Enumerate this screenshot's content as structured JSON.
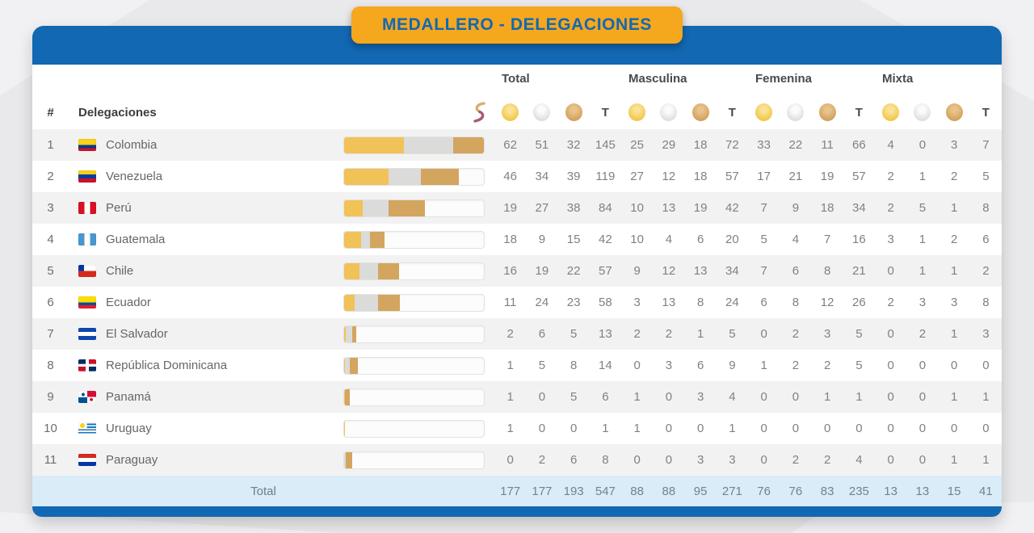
{
  "banner": {
    "title": "MEDALLERO - DELEGACIONES"
  },
  "colors": {
    "primary_blue": "#1268b3",
    "banner_orange": "#f5a71e",
    "gold": "#f1c257",
    "silver": "#dbdbd9",
    "bronze": "#d3a55e",
    "total_row_bg": "#d9ecf8"
  },
  "table": {
    "rank_header": "#",
    "delegation_header": "Delegaciones",
    "t_label": "T",
    "groups": [
      {
        "label": "Total"
      },
      {
        "label": "Masculina"
      },
      {
        "label": "Femenina"
      },
      {
        "label": "Mixta"
      }
    ],
    "medal_column_order": [
      "gold",
      "silver",
      "bronze",
      "T"
    ],
    "rows": [
      {
        "rank": "1",
        "country": "Colombia",
        "flag": "colombia",
        "values": [
          62,
          51,
          32,
          145,
          25,
          29,
          18,
          72,
          33,
          22,
          11,
          66,
          4,
          0,
          3,
          7
        ]
      },
      {
        "rank": "2",
        "country": "Venezuela",
        "flag": "venezuela",
        "values": [
          46,
          34,
          39,
          119,
          27,
          12,
          18,
          57,
          17,
          21,
          19,
          57,
          2,
          1,
          2,
          5
        ]
      },
      {
        "rank": "3",
        "country": "Perú",
        "flag": "peru",
        "values": [
          19,
          27,
          38,
          84,
          10,
          13,
          19,
          42,
          7,
          9,
          18,
          34,
          2,
          5,
          1,
          8
        ]
      },
      {
        "rank": "4",
        "country": "Guatemala",
        "flag": "guatemala",
        "values": [
          18,
          9,
          15,
          42,
          10,
          4,
          6,
          20,
          5,
          4,
          7,
          16,
          3,
          1,
          2,
          6
        ]
      },
      {
        "rank": "5",
        "country": "Chile",
        "flag": "chile",
        "values": [
          16,
          19,
          22,
          57,
          9,
          12,
          13,
          34,
          7,
          6,
          8,
          21,
          0,
          1,
          1,
          2
        ]
      },
      {
        "rank": "6",
        "country": "Ecuador",
        "flag": "ecuador",
        "values": [
          11,
          24,
          23,
          58,
          3,
          13,
          8,
          24,
          6,
          8,
          12,
          26,
          2,
          3,
          3,
          8
        ]
      },
      {
        "rank": "7",
        "country": "El Salvador",
        "flag": "el-salvador",
        "values": [
          2,
          6,
          5,
          13,
          2,
          2,
          1,
          5,
          0,
          2,
          3,
          5,
          0,
          2,
          1,
          3
        ]
      },
      {
        "rank": "8",
        "country": "República Dominicana",
        "flag": "republica-dominicana",
        "values": [
          1,
          5,
          8,
          14,
          0,
          3,
          6,
          9,
          1,
          2,
          2,
          5,
          0,
          0,
          0,
          0
        ]
      },
      {
        "rank": "9",
        "country": "Panamá",
        "flag": "panama",
        "values": [
          1,
          0,
          5,
          6,
          1,
          0,
          3,
          4,
          0,
          0,
          1,
          1,
          0,
          0,
          1,
          1
        ]
      },
      {
        "rank": "10",
        "country": "Uruguay",
        "flag": "uruguay",
        "values": [
          1,
          0,
          0,
          1,
          1,
          0,
          0,
          1,
          0,
          0,
          0,
          0,
          0,
          0,
          0,
          0
        ]
      },
      {
        "rank": "11",
        "country": "Paraguay",
        "flag": "paraguay",
        "values": [
          0,
          2,
          6,
          8,
          0,
          0,
          3,
          3,
          0,
          2,
          2,
          4,
          0,
          0,
          1,
          1
        ]
      }
    ],
    "total_row": {
      "label": "Total",
      "values": [
        177,
        177,
        193,
        547,
        88,
        88,
        95,
        271,
        76,
        76,
        83,
        235,
        13,
        13,
        15,
        41
      ]
    }
  }
}
